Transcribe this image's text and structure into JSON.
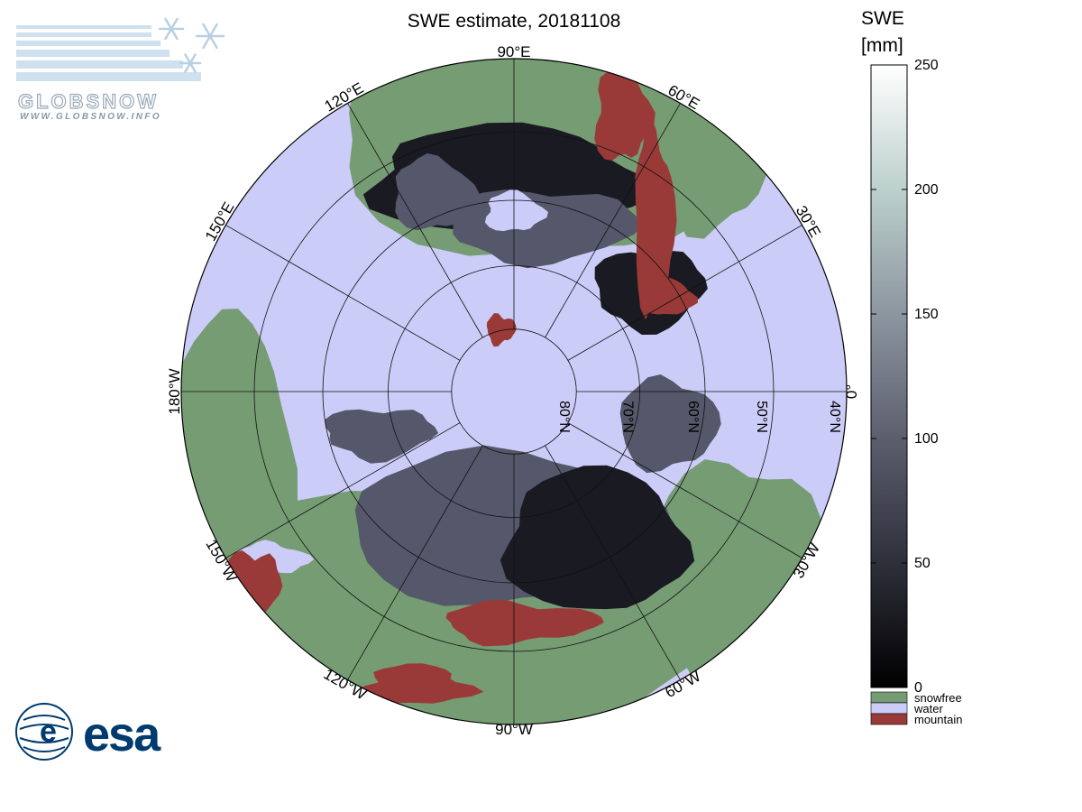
{
  "title": "SWE estimate, 20181108",
  "logos": {
    "globsnow": {
      "name": "GLOBSNOW",
      "url": "WWW.GLOBSNOW.INFO"
    },
    "esa": {
      "name": "esa"
    }
  },
  "map": {
    "projection": "north polar stereographic",
    "meridian_labels": [
      "90°W",
      "120°W",
      "150°W",
      "180°W",
      "150°E",
      "120°E",
      "90°E",
      "60°E",
      "30°E",
      "0°",
      "30°W",
      "60°W"
    ],
    "parallel_labels": [
      "80°N",
      "70°N",
      "60°N",
      "50°N",
      "40°N"
    ]
  },
  "colorbar": {
    "title_line1": "SWE",
    "title_line2": "[mm]",
    "min": 0,
    "max": 250,
    "ticks": [
      "0",
      "50",
      "100",
      "150",
      "200",
      "250"
    ],
    "gradient": [
      "#000000",
      "#2f2f3b",
      "#5c5e6e",
      "#8c96a0",
      "#bcd0cc",
      "#ffffff"
    ],
    "categories": [
      {
        "label": "snowfree",
        "color": "#769c74"
      },
      {
        "label": "water",
        "color": "#ccccf8"
      },
      {
        "label": "mountain",
        "color": "#9a3a38"
      }
    ]
  },
  "colors": {
    "land_snowfree": "#769c74",
    "water": "#ccccf8",
    "mountain": "#9a3a38",
    "snow_low": "#1a1a22",
    "snow_mid": "#55576a",
    "esa_blue": "#003b6f"
  }
}
